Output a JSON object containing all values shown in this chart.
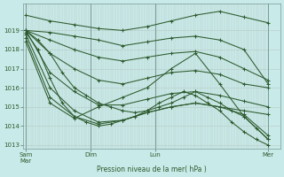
{
  "bg_color": "#c8eae8",
  "grid_minor_color": "#b8c8c4",
  "line_color": "#2d5a2d",
  "ylim": [
    1012.8,
    1020.4
  ],
  "yticks": [
    1013,
    1014,
    1015,
    1016,
    1017,
    1018,
    1019
  ],
  "xtick_labels": [
    "Sam\nMar",
    "Dim",
    "Lun",
    "Mer"
  ],
  "xlabel": "Pression niveau de la mer( hPa )",
  "series": [
    {
      "x": [
        0,
        1,
        2,
        3,
        4,
        5,
        6,
        7,
        8,
        9,
        10
      ],
      "y": [
        1019.8,
        1019.5,
        1019.3,
        1019.1,
        1019.0,
        1019.2,
        1019.5,
        1019.8,
        1020.0,
        1019.7,
        1019.4
      ]
    },
    {
      "x": [
        0,
        1,
        2,
        3,
        4,
        5,
        6,
        7,
        8,
        9,
        10
      ],
      "y": [
        1019.0,
        1018.9,
        1018.7,
        1018.5,
        1018.2,
        1018.4,
        1018.6,
        1018.7,
        1018.5,
        1018.0,
        1016.2
      ]
    },
    {
      "x": [
        0,
        1,
        2,
        3,
        4,
        5,
        6,
        7,
        8,
        9,
        10
      ],
      "y": [
        1019.0,
        1018.5,
        1018.0,
        1017.6,
        1017.4,
        1017.6,
        1017.8,
        1017.9,
        1017.6,
        1017.0,
        1016.4
      ]
    },
    {
      "x": [
        0,
        1,
        2,
        3,
        4,
        5,
        6,
        7,
        8,
        9,
        10
      ],
      "y": [
        1019.0,
        1017.8,
        1017.0,
        1016.4,
        1016.2,
        1016.5,
        1016.8,
        1016.9,
        1016.7,
        1016.2,
        1016.0
      ]
    },
    {
      "x": [
        0,
        1,
        2,
        3,
        4,
        5,
        6,
        7,
        8,
        9,
        10
      ],
      "y": [
        1019.0,
        1016.8,
        1015.8,
        1015.1,
        1015.1,
        1015.4,
        1015.7,
        1015.8,
        1015.6,
        1015.3,
        1015.0
      ]
    },
    {
      "x": [
        0,
        1,
        2,
        3,
        4,
        5,
        6,
        7,
        8,
        9,
        10
      ],
      "y": [
        1018.8,
        1016.0,
        1014.8,
        1014.2,
        1014.3,
        1014.7,
        1015.0,
        1015.2,
        1015.0,
        1014.8,
        1014.6
      ]
    },
    {
      "x": [
        0,
        1,
        2,
        3,
        4,
        5,
        6,
        7,
        8,
        9,
        10
      ],
      "y": [
        1018.6,
        1015.5,
        1014.5,
        1014.1,
        1014.3,
        1014.7,
        1015.0,
        1015.2,
        1015.0,
        1014.6,
        1013.5
      ]
    },
    {
      "x": [
        0,
        1,
        2,
        3,
        4,
        5,
        6,
        7,
        8,
        9,
        10
      ],
      "y": [
        1018.4,
        1015.2,
        1014.4,
        1015.0,
        1015.5,
        1016.0,
        1017.0,
        1017.8,
        1016.2,
        1014.5,
        1013.3
      ]
    },
    {
      "x": [
        0,
        0.5,
        1,
        1.5,
        2,
        2.5,
        3,
        3.5,
        4,
        4.5,
        5,
        5.5,
        6,
        6.5,
        7,
        7.5,
        8,
        8.5,
        9,
        9.5,
        10
      ],
      "y": [
        1019.0,
        1018.5,
        1017.8,
        1016.8,
        1016.0,
        1015.6,
        1015.2,
        1015.0,
        1014.8,
        1014.7,
        1014.8,
        1015.0,
        1015.2,
        1015.5,
        1015.8,
        1015.5,
        1015.2,
        1014.8,
        1014.5,
        1013.9,
        1013.3
      ]
    },
    {
      "x": [
        0,
        0.5,
        1,
        1.5,
        2,
        2.5,
        3,
        3.5,
        4,
        4.5,
        5,
        5.5,
        6,
        6.5,
        7,
        7.5,
        8,
        8.5,
        9,
        9.5,
        10
      ],
      "y": [
        1018.9,
        1018.0,
        1016.5,
        1015.2,
        1014.5,
        1014.2,
        1014.0,
        1014.1,
        1014.3,
        1014.5,
        1014.8,
        1015.2,
        1015.5,
        1015.8,
        1015.6,
        1015.2,
        1014.8,
        1014.2,
        1013.7,
        1013.3,
        1013.0
      ]
    }
  ],
  "xtick_x": [
    0,
    2.67,
    5.33,
    10
  ],
  "xlim": [
    -0.1,
    10.5
  ]
}
